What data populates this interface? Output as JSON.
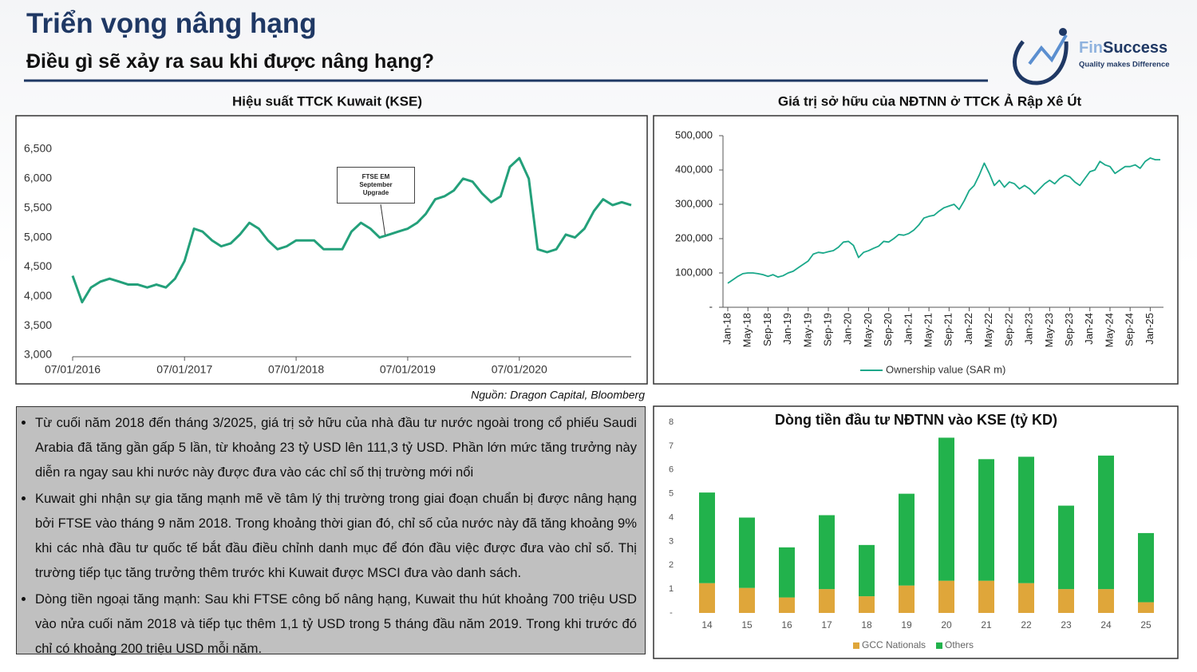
{
  "header": {
    "title": "Triển vọng nâng hạng",
    "subtitle": "Điều gì sẽ xảy ra sau khi được nâng hạng?"
  },
  "logo": {
    "brand_prefix": "Fin",
    "brand_suffix": "Success",
    "tagline": "Quality makes Difference"
  },
  "source": "Nguồn: Dragon Capital, Bloomberg",
  "notes": [
    "Từ cuối năm 2018 đến tháng 3/2025, giá trị sở hữu của nhà đầu tư nước ngoài trong cổ phiếu Saudi Arabia đã tăng gần gấp 5 lần, từ khoảng 23 tỷ USD lên 111,3 tỷ USD. Phần lớn mức tăng trưởng này diễn ra ngay sau khi nước này được đưa vào các chỉ số thị trường mới nổi",
    "Kuwait ghi nhận sự gia tăng mạnh mẽ về tâm lý thị trường trong giai đoạn chuẩn bị được nâng hạng bởi FTSE vào tháng 9 năm 2018. Trong khoảng thời gian đó, chỉ số của nước này đã tăng khoảng 9% khi các nhà đầu tư quốc tế bắt đầu điều chỉnh danh mục để đón đầu việc được đưa vào chỉ số. Thị trường tiếp tục tăng trưởng thêm trước khi Kuwait được MSCI đưa vào danh sách.",
    "Dòng tiền ngoại tăng mạnh: Sau khi FTSE công bố nâng hạng, Kuwait thu hút khoảng 700 triệu USD vào nửa cuối năm 2018 và tiếp tục thêm 1,1 tỷ USD trong 5 tháng đầu năm 2019. Trong khi trước đó chỉ có khoảng 200 triệu USD mỗi năm."
  ],
  "chart_data": [
    {
      "type": "line",
      "title": "Hiệu suất TTCK Kuwait (KSE)",
      "color": "#23a07a",
      "annotation": "FTSE EM September Upgrade",
      "x": [
        "2016-01-07",
        "2016-02-07",
        "2016-03-07",
        "2016-04-07",
        "2016-05-07",
        "2016-06-07",
        "2016-07-07",
        "2016-08-07",
        "2016-09-07",
        "2016-10-07",
        "2016-11-07",
        "2016-12-07",
        "2017-01-07",
        "2017-02-07",
        "2017-03-07",
        "2017-04-07",
        "2017-05-07",
        "2017-06-07",
        "2017-07-07",
        "2017-08-07",
        "2017-09-07",
        "2017-10-07",
        "2017-11-07",
        "2017-12-07",
        "2018-01-07",
        "2018-02-07",
        "2018-03-07",
        "2018-04-07",
        "2018-05-07",
        "2018-06-07",
        "2018-07-07",
        "2018-08-07",
        "2018-09-07",
        "2018-10-07",
        "2018-11-07",
        "2018-12-07",
        "2019-01-07",
        "2019-02-07",
        "2019-03-07",
        "2019-04-07",
        "2019-05-07",
        "2019-06-07",
        "2019-07-07",
        "2019-08-07",
        "2019-09-07",
        "2019-10-07",
        "2019-11-07",
        "2019-12-07",
        "2020-01-07",
        "2020-02-07",
        "2020-03-07",
        "2020-04-07",
        "2020-05-07",
        "2020-06-07",
        "2020-07-07",
        "2020-08-07",
        "2020-09-07",
        "2020-10-07",
        "2020-11-07",
        "2020-12-07",
        "2021-01-07"
      ],
      "values": [
        4350,
        3900,
        4150,
        4250,
        4300,
        4250,
        4200,
        4200,
        4150,
        4200,
        4150,
        4300,
        4600,
        5150,
        5100,
        4950,
        4850,
        4900,
        5050,
        5250,
        5150,
        4950,
        4800,
        4850,
        4950,
        4950,
        4950,
        4800,
        4800,
        4800,
        5100,
        5250,
        5150,
        5000,
        5050,
        5100,
        5150,
        5250,
        5400,
        5650,
        5700,
        5800,
        6000,
        5950,
        5750,
        5600,
        5700,
        6200,
        6350,
        6000,
        4800,
        4750,
        4800,
        5050,
        5000,
        5150,
        5450,
        5650,
        5550,
        5600,
        5550
      ],
      "xlim": [
        "2016-01-07",
        "2021-01-07"
      ],
      "xticks": [
        {
          "value": "2016-01-07",
          "label": "07/01/2016"
        },
        {
          "value": "2017-01-07",
          "label": "07/01/2017"
        },
        {
          "value": "2018-01-07",
          "label": "07/01/2018"
        },
        {
          "value": "2019-01-07",
          "label": "07/01/2019"
        },
        {
          "value": "2020-01-07",
          "label": "07/01/2020"
        }
      ],
      "ylim": [
        3000,
        6500
      ],
      "yticks": [
        {
          "value": 3000,
          "label": "3,000"
        },
        {
          "value": 3500,
          "label": "3,500"
        },
        {
          "value": 4000,
          "label": "4,000"
        },
        {
          "value": 4500,
          "label": "4,500"
        },
        {
          "value": 5000,
          "label": "5,000"
        },
        {
          "value": 5500,
          "label": "5,500"
        },
        {
          "value": 6000,
          "label": "6,000"
        },
        {
          "value": 6500,
          "label": "6,500"
        }
      ]
    },
    {
      "type": "line",
      "title": "Giá trị sở hữu của NĐTNN ở TTCK Ả Rập Xê Út",
      "legend": "bottom",
      "categories": [
        "Jan-18",
        null,
        null,
        null,
        "May-18",
        null,
        null,
        null,
        "Sep-18",
        null,
        null,
        null,
        "Jan-19",
        null,
        null,
        null,
        "May-19",
        null,
        null,
        null,
        "Sep-19",
        null,
        null,
        null,
        "Jan-20",
        null,
        null,
        null,
        "May-20",
        null,
        null,
        null,
        "Sep-20",
        null,
        null,
        null,
        "Jan-21",
        null,
        null,
        null,
        "May-21",
        null,
        null,
        null,
        "Sep-21",
        null,
        null,
        null,
        "Jan-22",
        null,
        null,
        null,
        "May-22",
        null,
        null,
        null,
        "Sep-22",
        null,
        null,
        null,
        "Jan-23",
        null,
        null,
        null,
        "May-23",
        null,
        null,
        null,
        "Sep-23",
        null,
        null,
        null,
        "Jan-24",
        null,
        null,
        null,
        "May-24",
        null,
        null,
        null,
        "Sep-24",
        null,
        null,
        null,
        "Jan-25",
        null,
        null
      ],
      "series": [
        {
          "name": "Ownership value (SAR m)",
          "color": "#1aa88a",
          "values": [
            70000,
            80000,
            90000,
            98000,
            100000,
            100000,
            98000,
            95000,
            90000,
            95000,
            88000,
            92000,
            100000,
            105000,
            115000,
            125000,
            135000,
            155000,
            160000,
            158000,
            162000,
            165000,
            175000,
            190000,
            192000,
            180000,
            145000,
            160000,
            165000,
            172000,
            178000,
            192000,
            190000,
            200000,
            212000,
            210000,
            215000,
            225000,
            240000,
            260000,
            265000,
            268000,
            280000,
            290000,
            295000,
            300000,
            285000,
            310000,
            340000,
            355000,
            385000,
            420000,
            390000,
            355000,
            370000,
            350000,
            365000,
            360000,
            345000,
            355000,
            345000,
            330000,
            345000,
            360000,
            370000,
            360000,
            375000,
            385000,
            380000,
            365000,
            355000,
            375000,
            395000,
            400000,
            425000,
            415000,
            410000,
            390000,
            400000,
            410000,
            410000,
            415000,
            405000,
            425000,
            435000,
            430000,
            430000
          ]
        }
      ],
      "ylim": [
        0,
        500000
      ],
      "yticks": [
        {
          "value": 0,
          "label": "-"
        },
        {
          "value": 100000,
          "label": "100,000"
        },
        {
          "value": 200000,
          "label": "200,000"
        },
        {
          "value": 300000,
          "label": "300,000"
        },
        {
          "value": 400000,
          "label": "400,000"
        },
        {
          "value": 500000,
          "label": "500,000"
        }
      ]
    },
    {
      "type": "bar",
      "stacked": true,
      "title": "Dòng tiền đầu tư NĐTNN vào KSE (tỷ KD)",
      "legend": "bottom",
      "categories": [
        "14",
        "15",
        "16",
        "17",
        "18",
        "19",
        "20",
        "21",
        "22",
        "23",
        "24",
        "25"
      ],
      "series": [
        {
          "name": "GCC Nationals",
          "color": "#dfa63a",
          "values": [
            1.25,
            1.05,
            0.65,
            1.0,
            0.7,
            1.15,
            1.35,
            1.35,
            1.25,
            1.0,
            1.0,
            0.45
          ]
        },
        {
          "name": "Others",
          "color": "#22b24c",
          "values": [
            3.8,
            2.95,
            2.1,
            3.1,
            2.15,
            3.85,
            6.0,
            5.1,
            5.3,
            3.5,
            5.6,
            2.9
          ]
        }
      ],
      "ylim": [
        0,
        8
      ],
      "yticks": [
        {
          "value": 0,
          "label": "-"
        },
        1,
        2,
        3,
        4,
        5,
        6,
        7,
        8
      ]
    }
  ]
}
